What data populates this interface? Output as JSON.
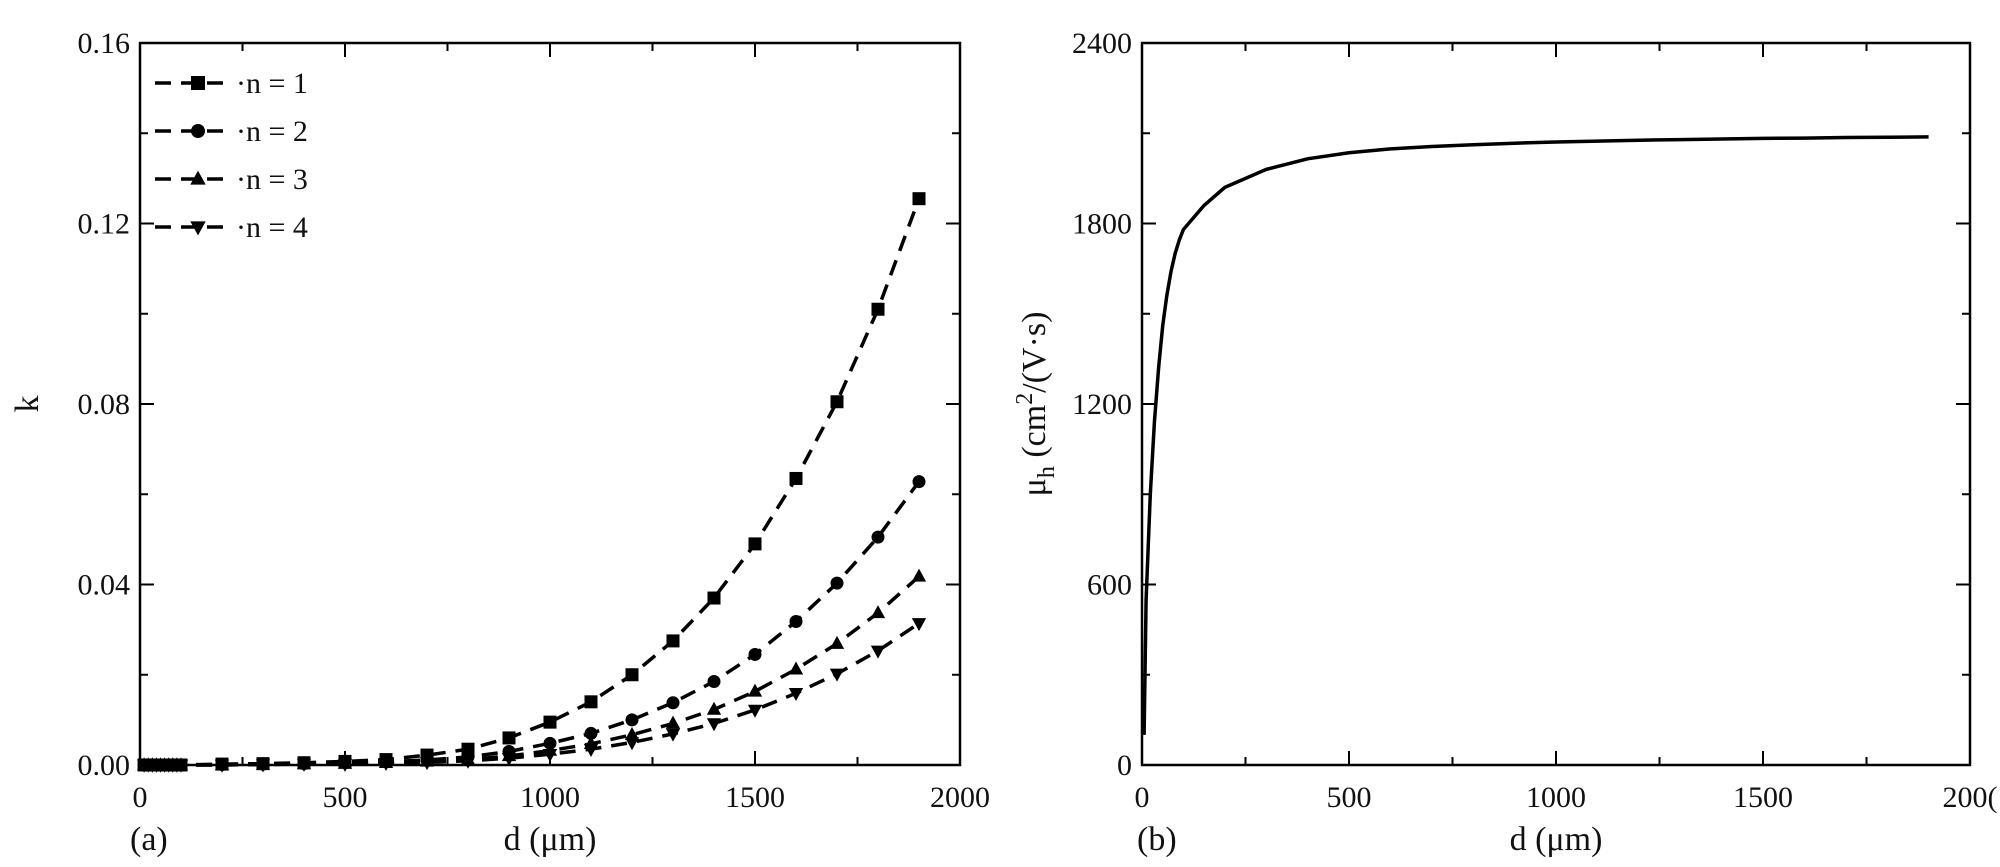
{
  "chart_data": [
    {
      "type": "line",
      "panel_label": "(a)",
      "xlabel": "d (μm)",
      "ylabel": "k",
      "xlim": [
        0,
        2000
      ],
      "ylim": [
        0,
        0.16
      ],
      "xticks": [
        "0",
        "500",
        "1000",
        "1500",
        "2000"
      ],
      "yticks": [
        "0.00",
        "0.04",
        "0.08",
        "0.12",
        "0.16"
      ],
      "x": [
        10,
        20,
        30,
        40,
        50,
        60,
        70,
        80,
        90,
        100,
        200,
        300,
        400,
        500,
        600,
        700,
        800,
        900,
        1000,
        1100,
        1200,
        1300,
        1400,
        1500,
        1600,
        1700,
        1800,
        1900
      ],
      "series": [
        {
          "name": "n = 1",
          "marker": "square",
          "values": [
            0,
            0,
            0,
            0,
            0,
            0,
            0,
            0,
            0,
            0,
            0.0002,
            0.0003,
            0.0005,
            0.0008,
            0.0012,
            0.0022,
            0.0035,
            0.006,
            0.0095,
            0.014,
            0.02,
            0.0275,
            0.037,
            0.049,
            0.0635,
            0.0805,
            0.101,
            0.1255
          ]
        },
        {
          "name": "n = 2",
          "marker": "circle",
          "values": [
            0,
            0,
            0,
            0,
            0,
            0,
            0,
            0,
            0,
            0,
            0.0001,
            0.0002,
            0.0003,
            0.0005,
            0.0007,
            0.0011,
            0.0018,
            0.003,
            0.0048,
            0.007,
            0.01,
            0.0138,
            0.0185,
            0.0245,
            0.0318,
            0.0403,
            0.0505,
            0.0628
          ]
        },
        {
          "name": "n = 3",
          "marker": "triangle-up",
          "values": [
            0,
            0,
            0,
            0,
            0,
            0,
            0,
            0,
            0,
            0,
            0,
            0.0001,
            0.0002,
            0.0003,
            0.0005,
            0.0008,
            0.0012,
            0.002,
            0.0032,
            0.0047,
            0.0067,
            0.0092,
            0.0123,
            0.0163,
            0.0212,
            0.0269,
            0.0337,
            0.0418
          ]
        },
        {
          "name": "n = 4",
          "marker": "triangle-down",
          "values": [
            0,
            0,
            0,
            0,
            0,
            0,
            0,
            0,
            0,
            0,
            0,
            0.0001,
            0.0002,
            0.0002,
            0.0004,
            0.0006,
            0.0009,
            0.0015,
            0.0024,
            0.0035,
            0.005,
            0.0069,
            0.0092,
            0.0122,
            0.0159,
            0.0202,
            0.0253,
            0.0314
          ]
        }
      ],
      "legend": "top-left",
      "grid": false
    },
    {
      "type": "line",
      "panel_label": "(b)",
      "xlabel": "d (μm)",
      "ylabel_parts": {
        "mu": "μ",
        "sub": "h",
        "open": " (cm",
        "sup": "2",
        "close": "/(V·s)"
      },
      "xlim": [
        0,
        2000
      ],
      "ylim": [
        0,
        2400
      ],
      "xticks": [
        "0",
        "500",
        "1000",
        "1500",
        "200("
      ],
      "yticks": [
        "0",
        "600",
        "1200",
        "1800",
        "2400"
      ],
      "series": [
        {
          "x": [
            5,
            10,
            20,
            30,
            40,
            50,
            60,
            70,
            80,
            90,
            100,
            150,
            200,
            300,
            400,
            500,
            600,
            700,
            800,
            900,
            1000,
            1100,
            1200,
            1300,
            1400,
            1500,
            1600,
            1700,
            1800,
            1900
          ],
          "values": [
            100,
            550,
            900,
            1140,
            1320,
            1460,
            1560,
            1640,
            1700,
            1745,
            1780,
            1860,
            1920,
            1980,
            2015,
            2035,
            2048,
            2056,
            2062,
            2067,
            2071,
            2074,
            2077,
            2079,
            2081,
            2083,
            2084,
            2086,
            2087,
            2088
          ]
        }
      ],
      "grid": false
    }
  ]
}
